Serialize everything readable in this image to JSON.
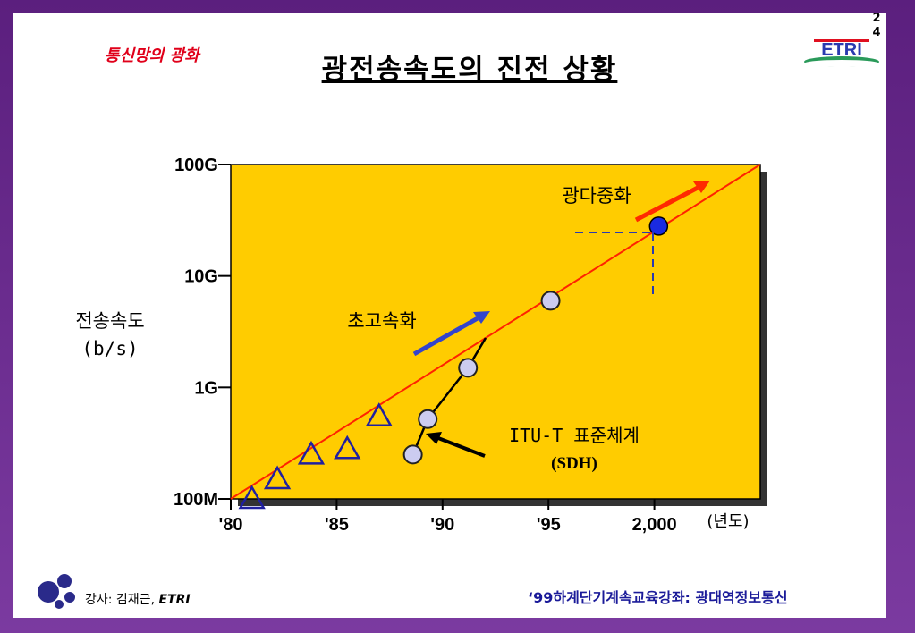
{
  "slide": {
    "section_label": "통신망의 광화",
    "title": "광전송속도의 진전 상황",
    "page_number": "24",
    "logo_text": "ETRI",
    "footer_left_prefix": "강사: 김재근, ",
    "footer_left_org": "ETRI",
    "footer_right": "‘99하계단기계속교육강좌: 광대역정보통신"
  },
  "colors": {
    "plot_bg": "#ffcc00",
    "trend_line": "#ff2200",
    "marker_fill": "#ccccf0",
    "triangle": "#2020a0",
    "highlight_point": "#1a2ae0",
    "frame": "#6a2a8a"
  },
  "chart_data": {
    "type": "scatter",
    "title": "",
    "xlabel": "",
    "x_unit_label": "(년도)",
    "ylabel_line1": "전송속도",
    "ylabel_line2": "(b/s)",
    "y_scale": "log",
    "ylim": [
      100000000,
      100000000000
    ],
    "xlim": [
      1980,
      2005
    ],
    "x_ticks": [
      {
        "value": 1980,
        "label": "'80"
      },
      {
        "value": 1985,
        "label": "'85"
      },
      {
        "value": 1990,
        "label": "'90"
      },
      {
        "value": 1995,
        "label": "'95"
      },
      {
        "value": 2000,
        "label": "2,000"
      }
    ],
    "y_ticks": [
      {
        "value": 100000000,
        "label": "100M"
      },
      {
        "value": 1000000000,
        "label": "1G"
      },
      {
        "value": 10000000000,
        "label": "10G"
      },
      {
        "value": 100000000000,
        "label": "100G"
      }
    ],
    "trend_line": {
      "x": [
        1980,
        2005
      ],
      "y": [
        100000000,
        100000000000
      ]
    },
    "series": [
      {
        "marker": "triangle",
        "x": [
          1981,
          1982.2,
          1983.8,
          1985.5,
          1987
        ],
        "y": [
          100000000,
          150000000,
          250000000,
          280000000,
          550000000
        ]
      },
      {
        "marker": "circle",
        "connected": true,
        "x": [
          1988.6,
          1989.3,
          1991.2,
          1995.1
        ],
        "y": [
          250000000,
          520000000,
          1500000000,
          6000000000
        ]
      },
      {
        "marker": "filled-circle",
        "x": [
          2000.2
        ],
        "y": [
          28000000000
        ]
      }
    ],
    "annotations": [
      {
        "text": "광다중화"
      },
      {
        "text": "초고속화"
      },
      {
        "text": "ITU-T 표준체계"
      },
      {
        "text": "(SDH)"
      }
    ]
  }
}
